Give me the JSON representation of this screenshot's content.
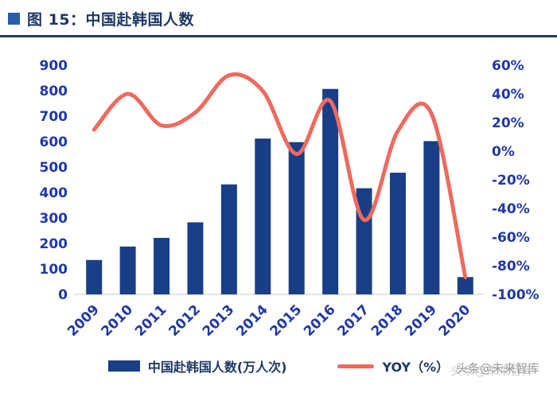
{
  "title": {
    "text": "图 15：中国赴韩国人数"
  },
  "watermark": {
    "text": "头条@未来智库"
  },
  "colors": {
    "bar": "#1A3E85",
    "line": "#EE6A5F",
    "axis_text": "#2038A8",
    "title_text": "#1F3864",
    "accent_square": "#2A5CAA",
    "legend_text": "#1F3864",
    "watermark_text": "#8F8F8F"
  },
  "chart_data": {
    "type": "combo",
    "title": "中国赴韩国人数",
    "categories": [
      "2009",
      "2010",
      "2011",
      "2012",
      "2013",
      "2014",
      "2015",
      "2016",
      "2017",
      "2018",
      "2019",
      "2020"
    ],
    "series": [
      {
        "name": "中国赴韩国人数(万人次)",
        "type": "bar",
        "axis": "left",
        "values": [
          135,
          188,
          222,
          283,
          432,
          612,
          598,
          807,
          417,
          478,
          602,
          68
        ]
      },
      {
        "name": "YOY（%）",
        "type": "line",
        "axis": "right",
        "values": [
          15,
          40,
          18,
          27,
          53,
          42,
          -2,
          35,
          -48,
          14,
          26,
          -88
        ]
      }
    ],
    "left_axis": {
      "min": 0,
      "max": 900,
      "ticks": [
        900,
        800,
        700,
        600,
        500,
        400,
        300,
        200,
        100,
        0
      ]
    },
    "right_axis": {
      "min": -100,
      "max": 60,
      "ticks": [
        "60%",
        "40%",
        "20%",
        "0%",
        "-20%",
        "-40%",
        "-60%",
        "-80%",
        "-100%"
      ]
    },
    "legend_position": "bottom",
    "grid": false
  }
}
